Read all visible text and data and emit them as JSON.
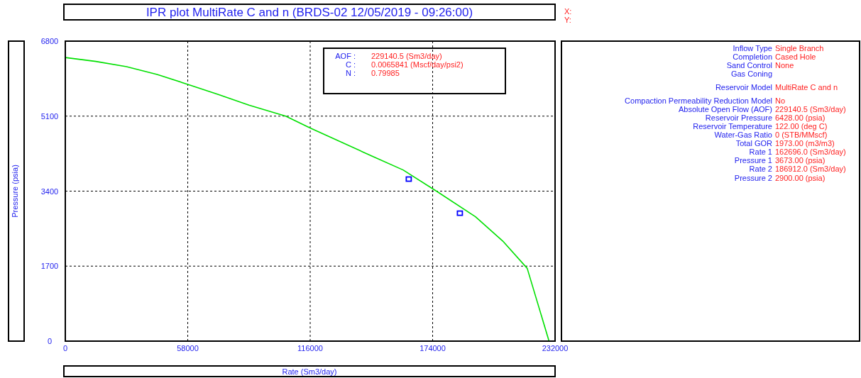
{
  "chart_data": {
    "type": "line",
    "title": "IPR plot  MultiRate C and n (BRDS-02 12/05/2019 - 09:26:00)",
    "xlabel": "Rate  (Sm3/day)",
    "ylabel": "Pressure  (psia)",
    "xlim": [
      0,
      232000
    ],
    "ylim": [
      0,
      6800
    ],
    "xticks": [
      0,
      58000,
      116000,
      174000,
      232000
    ],
    "yticks": [
      0,
      1700,
      3400,
      5100,
      6800
    ],
    "grid": true,
    "series": [
      {
        "color": "#00e000",
        "marker": "none",
        "x": [
          0,
          14500,
          29000,
          43500,
          58000,
          72500,
          87000,
          104400,
          116000,
          145000,
          160000,
          175800,
          194300,
          207200,
          218800,
          229140.5
        ],
        "values": [
          6428,
          6340,
          6220,
          6045,
          5820,
          5590,
          5350,
          5100,
          4830,
          4200,
          3880,
          3400,
          2820,
          2270,
          1650,
          0
        ]
      },
      {
        "type": "scatter",
        "color": "#0000ff",
        "marker": "square",
        "x": [
          162696,
          186912
        ],
        "values": [
          3673,
          2900
        ]
      }
    ],
    "annotations": [
      "AOF :",
      "229140.5 (Sm3/day)",
      "C :",
      "0.0065841 (Mscf/day/psi2)",
      "N :",
      "0.79985",
      "X:",
      "Y:",
      "Inflow Type",
      "Single Branch",
      "Completion",
      "Cased Hole",
      "Sand Control",
      "None",
      "Gas Coning",
      "Reservoir Model",
      "MultiRate C and n",
      "Compaction Permeability Reduction Model",
      "No",
      "Absolute Open Flow (AOF)",
      "229140.5 (Sm3/day)",
      "Reservoir Pressure",
      "6428.00 (psia)",
      "Reservoir Temperature",
      "122.00 (deg C)",
      "Water-Gas Ratio",
      "0 (STB/MMscf)",
      "Total GOR",
      "1973.00 (m3/m3)",
      "Rate 1",
      "162696.0 (Sm3/day)",
      "Pressure 1",
      "3673.00 (psia)",
      "Rate 2",
      "186912.0 (Sm3/day)",
      "Pressure 2",
      "2900.00 (psia)"
    ]
  }
}
